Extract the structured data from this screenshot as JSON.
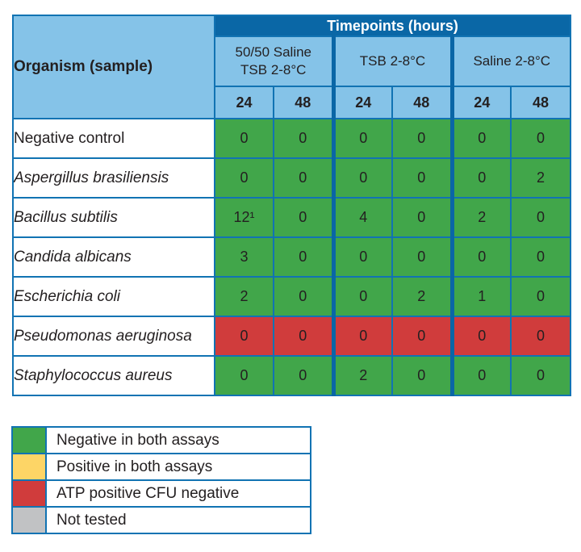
{
  "colors": {
    "header_blue": "#0a67a6",
    "light_blue": "#85c3e8",
    "border_blue": "#1173b3",
    "divider_blue": "#0a66a6",
    "text_dark": "#231f20",
    "header_text": "#ffffff",
    "row_bg": "#ffffff"
  },
  "status_colors": {
    "negative": "#41a64a",
    "positive": "#fdd566",
    "atp_positive_cfu_negative": "#d03c3c",
    "not_tested": "#c1c2c4"
  },
  "chart_data": {
    "type": "table",
    "top_header": "Timepoints (hours)",
    "row_header": "Organism (sample)",
    "column_groups": [
      {
        "label": "50/50 Saline\nTSB 2-8°C"
      },
      {
        "label": "TSB 2-8°C"
      },
      {
        "label": "Saline 2-8°C"
      }
    ],
    "subcolumns": [
      "24",
      "48"
    ],
    "rows": [
      {
        "organism": "Negative control",
        "italic": false,
        "status": "negative",
        "values": [
          "0",
          "0",
          "0",
          "0",
          "0",
          "0"
        ]
      },
      {
        "organism": "Aspergillus brasiliensis",
        "italic": true,
        "status": "negative",
        "values": [
          "0",
          "0",
          "0",
          "0",
          "0",
          "2"
        ]
      },
      {
        "organism": "Bacillus subtilis",
        "italic": true,
        "status": "negative",
        "values": [
          "12¹",
          "0",
          "4",
          "0",
          "2",
          "0"
        ]
      },
      {
        "organism": "Candida albicans",
        "italic": true,
        "status": "negative",
        "values": [
          "3",
          "0",
          "0",
          "0",
          "0",
          "0"
        ]
      },
      {
        "organism": "Escherichia coli",
        "italic": true,
        "status": "negative",
        "values": [
          "2",
          "0",
          "0",
          "2",
          "1",
          "0"
        ]
      },
      {
        "organism": "Pseudomonas aeruginosa",
        "italic": true,
        "status": "atp_positive_cfu_negative",
        "values": [
          "0",
          "0",
          "0",
          "0",
          "0",
          "0"
        ]
      },
      {
        "organism": "Staphylococcus aureus",
        "italic": true,
        "status": "negative",
        "values": [
          "0",
          "0",
          "2",
          "0",
          "0",
          "0"
        ]
      }
    ],
    "legend": [
      {
        "label": "Negative in both assays",
        "status": "negative"
      },
      {
        "label": "Positive in both assays",
        "status": "positive"
      },
      {
        "label": "ATP positive CFU negative",
        "status": "atp_positive_cfu_negative"
      },
      {
        "label": "Not tested",
        "status": "not_tested"
      }
    ]
  }
}
